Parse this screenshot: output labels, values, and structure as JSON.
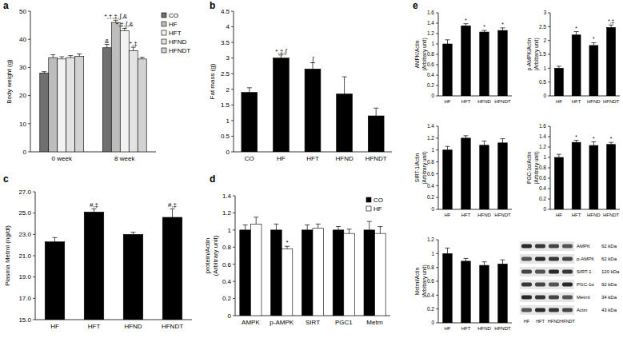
{
  "chart_data": [
    {
      "type": "bar",
      "title": "a",
      "y_label": [
        "Body weight (g)"
      ],
      "categories": [
        "0 week",
        "8 week"
      ],
      "ylim": [
        0,
        50
      ],
      "yticks": [
        0,
        10,
        20,
        30,
        40,
        50
      ],
      "grid": false,
      "legend": "upper right",
      "series": [
        {
          "name": "CO",
          "color": "#6f6f6f",
          "values": [
            28,
            37
          ],
          "errors": [
            0.5,
            1.2
          ],
          "annotations": [
            null,
            "&"
          ]
        },
        {
          "name": "HF",
          "color": "#bdbdbd",
          "values": [
            33.5,
            46
          ],
          "errors": [
            1,
            0.8
          ],
          "annotations": [
            null,
            "*,†,‡,∫,&"
          ]
        },
        {
          "name": "HFT",
          "color": "#f2f2f2",
          "values": [
            33,
            43
          ],
          "errors": [
            0.8,
            0.9
          ],
          "annotations": [
            null,
            "*,‡,∫,&"
          ]
        },
        {
          "name": "HFND",
          "color": "#e3e3e3",
          "values": [
            33.5,
            36
          ],
          "errors": [
            0.7,
            1.2
          ],
          "annotations": [
            null,
            "*,‡"
          ]
        },
        {
          "name": "HFNDT",
          "color": "#d2d2d2",
          "values": [
            34,
            33
          ],
          "errors": [
            0.8,
            0.6
          ],
          "annotations": [
            null,
            null
          ]
        }
      ]
    },
    {
      "type": "bar",
      "title": "b",
      "y_label": [
        "Fat mass (g)"
      ],
      "categories": [
        "CO",
        "HF",
        "HFT",
        "HFND",
        "HFNDT"
      ],
      "ylim": [
        0,
        4.5
      ],
      "yticks": [
        0,
        0.5,
        1,
        1.5,
        2,
        2.5,
        3,
        3.5,
        4,
        4.5
      ],
      "grid": false,
      "color": "#000000",
      "values": [
        1.9,
        3,
        2.65,
        1.85,
        1.15
      ],
      "errors": [
        0.15,
        0.1,
        0.2,
        0.55,
        0.25
      ],
      "annotations": [
        null,
        "*,‡,∫",
        "∫",
        null,
        null
      ]
    },
    {
      "type": "bar",
      "title": "c",
      "y_label": [
        "Plasma Metrnl (ng/dl)"
      ],
      "categories": [
        "HF",
        "HFT",
        "HFND",
        "HFNDT"
      ],
      "ylim": [
        15,
        27
      ],
      "yticks": [
        {
          "value": 15,
          "label": "15.0"
        },
        {
          "value": 17,
          "label": "17.0"
        },
        {
          "value": 19,
          "label": "19.0"
        },
        {
          "value": 21,
          "label": "21.0"
        },
        {
          "value": 23,
          "label": "23.0"
        },
        {
          "value": 25,
          "label": "25.0"
        },
        {
          "value": 27,
          "label": "27.0"
        }
      ],
      "grid": false,
      "color": "#000000",
      "values": [
        22.3,
        25.1,
        23,
        24.6
      ],
      "errors": [
        0.4,
        0.3,
        0.2,
        0.8
      ],
      "annotations": [
        null,
        "#,‡",
        null,
        "#,‡"
      ]
    },
    {
      "type": "bar",
      "title": "d",
      "y_label": [
        "protein/Actin",
        "(Arbitrary unit)"
      ],
      "categories": [
        "AMPK",
        "p-AMPK",
        "SIRT",
        "PGC1",
        "Metrn"
      ],
      "ylim": [
        0,
        1.4
      ],
      "yticks": [
        0,
        0.2,
        0.4,
        0.6,
        0.8,
        1,
        1.2,
        1.4
      ],
      "grid": false,
      "legend": "upper right",
      "series": [
        {
          "name": "CO",
          "color": "#000000",
          "values": [
            1,
            1,
            1,
            1,
            1
          ],
          "errors": [
            0.06,
            0.07,
            0.06,
            0.04,
            0.1
          ],
          "annotations": [
            null,
            null,
            null,
            null,
            null
          ]
        },
        {
          "name": "HF",
          "color": "#ffffff",
          "values": [
            1.07,
            0.78,
            1.02,
            0.96,
            0.96
          ],
          "errors": [
            0.08,
            0.03,
            0.05,
            0.05,
            0.08
          ],
          "annotations": [
            null,
            "*",
            null,
            null,
            null
          ]
        }
      ]
    },
    {
      "type": "bar",
      "title": "e",
      "y_label": [
        "AMPK/Actin",
        "(Arbitrary unit)"
      ],
      "categories": [
        "HF",
        "HFT",
        "HFND",
        "HFNDT"
      ],
      "ylim": [
        0,
        1.6
      ],
      "yticks": [
        0,
        0.2,
        0.4,
        0.6,
        0.8,
        1,
        1.2,
        1.4,
        1.6
      ],
      "grid": false,
      "color": "#000000",
      "values": [
        1,
        1.35,
        1.23,
        1.26
      ],
      "errors": [
        0.08,
        0.04,
        0.03,
        0.05
      ],
      "annotations": [
        null,
        "*",
        "*",
        "*"
      ]
    },
    {
      "type": "bar",
      "y_label": [
        "p-AMPK/Actin",
        "(Arbitrary unit)"
      ],
      "categories": [
        "HF",
        "HFT",
        "HFND",
        "HFNDT"
      ],
      "ylim": [
        0,
        3
      ],
      "yticks": [
        0,
        0.5,
        1,
        1.5,
        2,
        2.5,
        3
      ],
      "grid": false,
      "color": "#000000",
      "values": [
        1,
        2.2,
        1.82,
        2.47
      ],
      "errors": [
        0.07,
        0.12,
        0.1,
        0.09
      ],
      "annotations": [
        null,
        "*",
        "*",
        "*,‡"
      ]
    },
    {
      "type": "bar",
      "y_label": [
        "SIRT-1/Actin",
        "(Arbitrary unit)"
      ],
      "categories": [
        "HF",
        "HFT",
        "HFND",
        "HFNDT"
      ],
      "ylim": [
        0,
        1.4
      ],
      "yticks": [
        0,
        0.2,
        0.4,
        0.6,
        0.8,
        1,
        1.2,
        1.4
      ],
      "grid": false,
      "color": "#000000",
      "values": [
        1,
        1.2,
        1.08,
        1.12
      ],
      "errors": [
        0.06,
        0.04,
        0.07,
        0.07
      ],
      "annotations": [
        null,
        null,
        null,
        null
      ]
    },
    {
      "type": "bar",
      "y_label": [
        "PGC-1α/Actin",
        "(Arbitrary unit)"
      ],
      "categories": [
        "HF",
        "HFT",
        "HFND",
        "HFNDT"
      ],
      "ylim": [
        0,
        1.6
      ],
      "yticks": [
        0,
        0.2,
        0.4,
        0.6,
        0.8,
        1,
        1.2,
        1.4,
        1.6
      ],
      "grid": false,
      "color": "#000000",
      "values": [
        1,
        1.29,
        1.23,
        1.25
      ],
      "errors": [
        0.06,
        0.04,
        0.07,
        0.04
      ],
      "annotations": [
        null,
        "*",
        "*",
        "*"
      ]
    },
    {
      "type": "bar",
      "y_label": [
        "Metrnl/Actin",
        "(Arbitrary unit)"
      ],
      "categories": [
        "HF",
        "HFT",
        "HFND",
        "HFNDT"
      ],
      "ylim": [
        0,
        1.2
      ],
      "yticks": [
        0,
        0.2,
        0.4,
        0.6,
        0.8,
        1,
        1.2
      ],
      "grid": false,
      "color": "#000000",
      "values": [
        1,
        0.89,
        0.83,
        0.85
      ],
      "errors": [
        0.08,
        0.04,
        0.05,
        0.06
      ],
      "annotations": [
        null,
        null,
        null,
        null
      ]
    }
  ],
  "blot": {
    "rows": [
      {
        "label": "AMPK",
        "size": "62 kDa"
      },
      {
        "label": "p-AMPK",
        "size": "62 kDa"
      },
      {
        "label": "SIRT-1",
        "size": "120 kDa"
      },
      {
        "label": "PGC-1α",
        "size": "92 kDa"
      },
      {
        "label": "Metrnl",
        "size": "34 kDa"
      },
      {
        "label": "Actin",
        "size": "43 kDa"
      }
    ],
    "lanes": [
      "HF",
      "HFT",
      "HFND",
      "HFNDT"
    ]
  }
}
